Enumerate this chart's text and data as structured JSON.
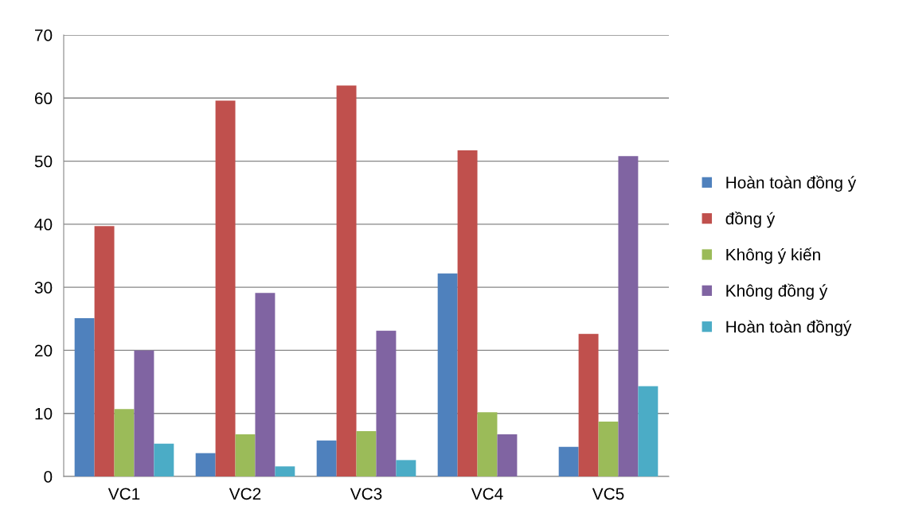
{
  "chart_data": {
    "type": "bar",
    "categories": [
      "VC1",
      "VC2",
      "VC3",
      "VC4",
      "VC5"
    ],
    "series": [
      {
        "name": "Hoàn toàn đồng ý",
        "color": "#4f81bd",
        "values": [
          25.1,
          3.7,
          5.7,
          32.2,
          4.7
        ]
      },
      {
        "name": "đồng ý",
        "color": "#c0504d",
        "values": [
          39.7,
          59.6,
          62.0,
          51.7,
          22.6
        ]
      },
      {
        "name": "Không ý kiến",
        "color": "#9bbb59",
        "values": [
          10.7,
          6.7,
          7.2,
          10.2,
          8.7
        ]
      },
      {
        "name": "Không đồng ý",
        "color": "#8064a2",
        "values": [
          20.0,
          29.1,
          23.1,
          6.7,
          50.8
        ]
      },
      {
        "name": "Hoàn toàn đồngý",
        "color": "#4bacc6",
        "values": [
          5.2,
          1.6,
          2.6,
          0,
          14.3
        ]
      }
    ],
    "ylim": [
      0,
      70
    ],
    "yticks": [
      0,
      10,
      20,
      30,
      40,
      50,
      60,
      70
    ],
    "grid": "y",
    "legend": "right"
  }
}
